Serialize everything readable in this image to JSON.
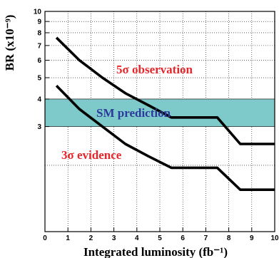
{
  "chart_data": {
    "type": "line",
    "xlabel": "Integrated luminosity (fb⁻¹)",
    "ylabel": "BR (x10⁻⁹)",
    "xlim": [
      0,
      10
    ],
    "ylim": [
      1,
      10
    ],
    "y_scale": "log",
    "grid": true,
    "x_ticks": [
      "0",
      "1",
      "2",
      "3",
      "4",
      "5",
      "6",
      "7",
      "8",
      "9",
      "10"
    ],
    "y_ticks": [
      {
        "value": 3,
        "label": "3"
      },
      {
        "value": 4,
        "label": "4"
      },
      {
        "value": 5,
        "label": "5"
      },
      {
        "value": 6,
        "label": "6"
      },
      {
        "value": 7,
        "label": "7"
      },
      {
        "value": 8,
        "label": "8"
      },
      {
        "value": 9,
        "label": "9"
      },
      {
        "value": 10,
        "label": "10"
      }
    ],
    "band": {
      "name": "SM prediction",
      "low": 3.0,
      "high": 4.0,
      "color": "#7ec9c9"
    },
    "series": [
      {
        "name": "5σ observation",
        "x": [
          0.5,
          1.5,
          2.5,
          3.5,
          4.5,
          5.5,
          6.5,
          7.5,
          8.5,
          9.5,
          10
        ],
        "y": [
          7.6,
          6.0,
          5.0,
          4.25,
          3.75,
          3.3,
          3.3,
          3.3,
          2.5,
          2.5,
          2.5
        ]
      },
      {
        "name": "3σ evidence",
        "x": [
          0.5,
          1.5,
          2.5,
          3.5,
          4.5,
          5.5,
          6.5,
          7.5,
          8.5,
          9.5,
          10
        ],
        "y": [
          4.6,
          3.6,
          3.0,
          2.5,
          2.2,
          1.95,
          1.95,
          1.95,
          1.55,
          1.55,
          1.55
        ]
      }
    ],
    "line_color": "#000000"
  }
}
